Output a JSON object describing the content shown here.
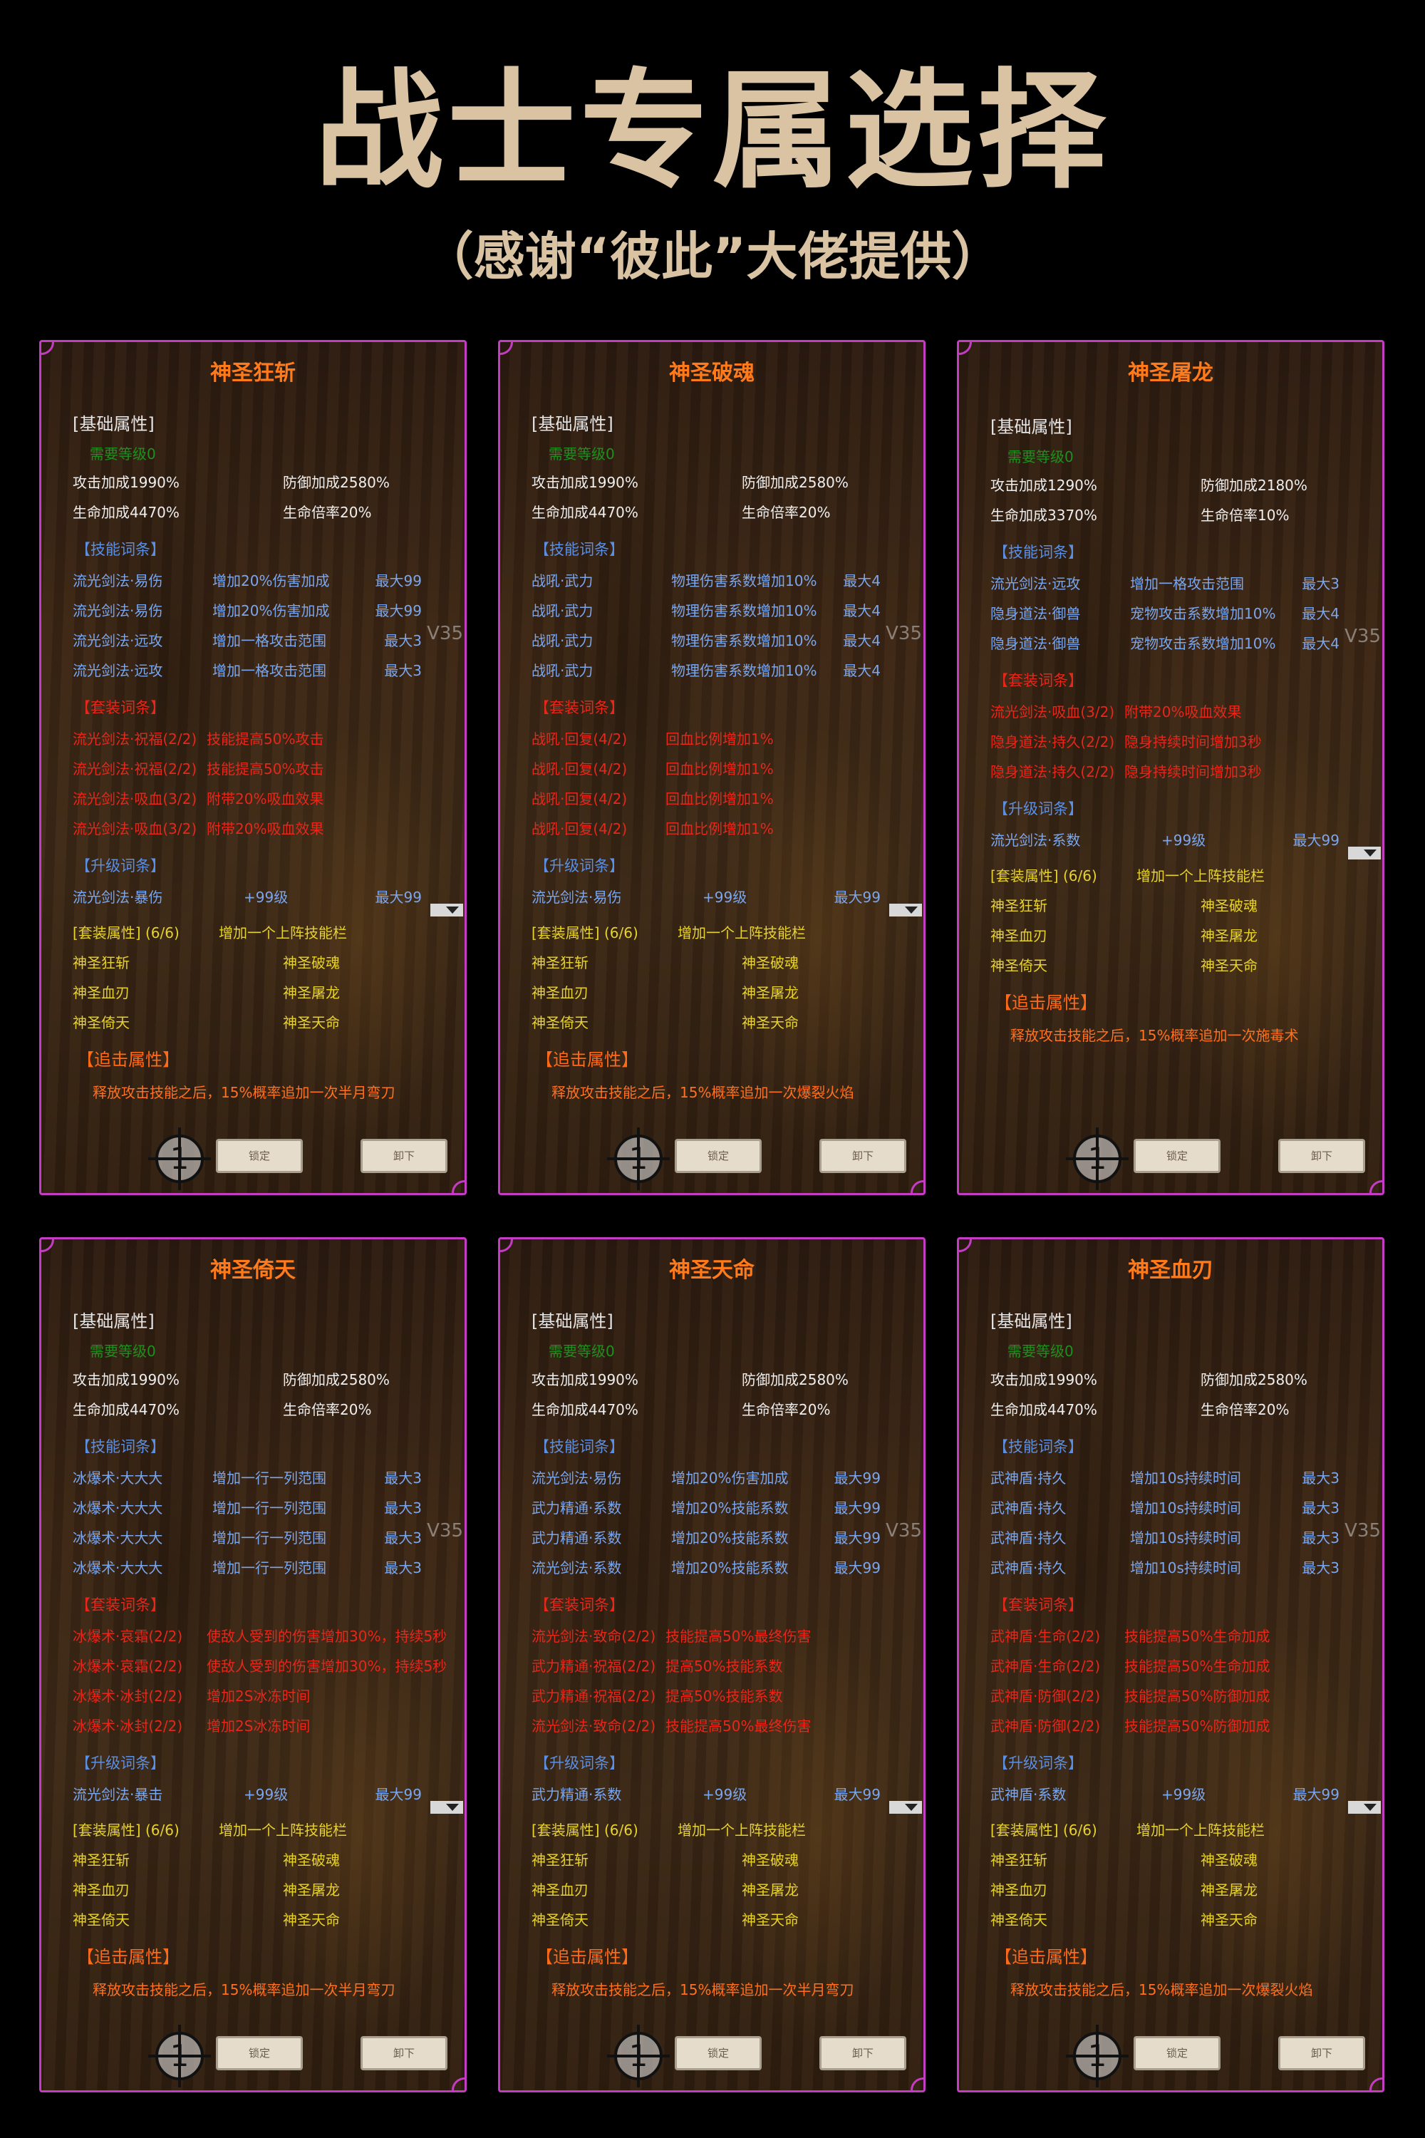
{
  "header": {
    "title": "战士专属选择",
    "subtitle": "（感谢“彼此”大佬提供）"
  },
  "colors": {
    "border": "#c43cc4",
    "title": "#ff7a1a",
    "skill": "#7aa6ee",
    "set": "#e8261a",
    "set_attr": "#e6d22a",
    "level": "#1f8f1f",
    "chase": "#ff6a18",
    "header_text": "#d9c3a3"
  },
  "common": {
    "base_label": "[基础属性]",
    "level_label": "需要等级0",
    "skill_header": "【技能词条】",
    "set_header": "【套装词条】",
    "upgrade_header": "【升级词条】",
    "set_attr_label": "[套装属性] (6/6)",
    "set_attr_effect": "增加一个上阵技能栏",
    "set_members": [
      "神圣狂斩",
      "神圣破魂",
      "神圣血刃",
      "神圣屠龙",
      "神圣倚天",
      "神圣天命"
    ],
    "chase_header": "【追击属性】",
    "lock_label": "锁定",
    "unload_label": "卸下",
    "badge": "1",
    "watermark": "V35",
    "dropdown_icon": "triangle-down"
  },
  "panels": [
    {
      "title": "神圣狂斩",
      "stats": [
        "攻击加成1990%",
        "防御加成2580%",
        "生命加成4470%",
        "生命倍率20%"
      ],
      "skills": [
        [
          "流光剑法·易伤",
          "增加20%伤害加成",
          "最大99"
        ],
        [
          "流光剑法·易伤",
          "增加20%伤害加成",
          "最大99"
        ],
        [
          "流光剑法·远攻",
          "增加一格攻击范围",
          "最大3"
        ],
        [
          "流光剑法·远攻",
          "增加一格攻击范围",
          "最大3"
        ]
      ],
      "sets": [
        [
          "流光剑法·祝福(2/2)",
          "技能提高50%攻击"
        ],
        [
          "流光剑法·祝福(2/2)",
          "技能提高50%攻击"
        ],
        [
          "流光剑法·吸血(3/2)",
          "附带20%吸血效果"
        ],
        [
          "流光剑法·吸血(3/2)",
          "附带20%吸血效果"
        ]
      ],
      "upgrade": [
        "流光剑法·暴伤",
        "+99级",
        "最大99"
      ],
      "chase": "释放攻击技能之后，15%概率追加一次半月弯刀"
    },
    {
      "title": "神圣破魂",
      "stats": [
        "攻击加成1990%",
        "防御加成2580%",
        "生命加成4470%",
        "生命倍率20%"
      ],
      "skills": [
        [
          "战吼·武力",
          "物理伤害系数增加10%",
          "最大4"
        ],
        [
          "战吼·武力",
          "物理伤害系数增加10%",
          "最大4"
        ],
        [
          "战吼·武力",
          "物理伤害系数增加10%",
          "最大4"
        ],
        [
          "战吼·武力",
          "物理伤害系数增加10%",
          "最大4"
        ]
      ],
      "sets": [
        [
          "战吼·回复(4/2)",
          "回血比例增加1%"
        ],
        [
          "战吼·回复(4/2)",
          "回血比例增加1%"
        ],
        [
          "战吼·回复(4/2)",
          "回血比例增加1%"
        ],
        [
          "战吼·回复(4/2)",
          "回血比例增加1%"
        ]
      ],
      "upgrade": [
        "流光剑法·易伤",
        "+99级",
        "最大99"
      ],
      "chase": "释放攻击技能之后，15%概率追加一次爆裂火焰"
    },
    {
      "title": "神圣屠龙",
      "stats": [
        "攻击加成1290%",
        "防御加成2180%",
        "生命加成3370%",
        "生命倍率10%"
      ],
      "skills": [
        [
          "流光剑法·远攻",
          "增加一格攻击范围",
          "最大3"
        ],
        [
          "隐身道法·御兽",
          "宠物攻击系数增加10%",
          "最大4"
        ],
        [
          "隐身道法·御兽",
          "宠物攻击系数增加10%",
          "最大4"
        ]
      ],
      "sets": [
        [
          "流光剑法·吸血(3/2)",
          "附带20%吸血效果"
        ],
        [
          "隐身道法·持久(2/2)",
          "隐身持续时间增加3秒"
        ],
        [
          "隐身道法·持久(2/2)",
          "隐身持续时间增加3秒"
        ]
      ],
      "upgrade": [
        "流光剑法·系数",
        "+99级",
        "最大99"
      ],
      "chase": "释放攻击技能之后，15%概率追加一次施毒术"
    },
    {
      "title": "神圣倚天",
      "stats": [
        "攻击加成1990%",
        "防御加成2580%",
        "生命加成4470%",
        "生命倍率20%"
      ],
      "skills": [
        [
          "冰爆术·大大大",
          "增加一行一列范围",
          "最大3"
        ],
        [
          "冰爆术·大大大",
          "增加一行一列范围",
          "最大3"
        ],
        [
          "冰爆术·大大大",
          "增加一行一列范围",
          "最大3"
        ],
        [
          "冰爆术·大大大",
          "增加一行一列范围",
          "最大3"
        ]
      ],
      "sets": [
        [
          "冰爆术·哀霜(2/2)",
          "使敌人受到的伤害增加30%，持续5秒"
        ],
        [
          "冰爆术·哀霜(2/2)",
          "使敌人受到的伤害增加30%，持续5秒"
        ],
        [
          "冰爆术·冰封(2/2)",
          "增加2S冰冻时间"
        ],
        [
          "冰爆术·冰封(2/2)",
          "增加2S冰冻时间"
        ]
      ],
      "upgrade": [
        "流光剑法·暴击",
        "+99级",
        "最大99"
      ],
      "chase": "释放攻击技能之后，15%概率追加一次半月弯刀"
    },
    {
      "title": "神圣天命",
      "stats": [
        "攻击加成1990%",
        "防御加成2580%",
        "生命加成4470%",
        "生命倍率20%"
      ],
      "skills": [
        [
          "流光剑法·易伤",
          "增加20%伤害加成",
          "最大99"
        ],
        [
          "武力精通·系数",
          "增加20%技能系数",
          "最大99"
        ],
        [
          "武力精通·系数",
          "增加20%技能系数",
          "最大99"
        ],
        [
          "流光剑法·系数",
          "增加20%技能系数",
          "最大99"
        ]
      ],
      "sets": [
        [
          "流光剑法·致命(2/2)",
          "技能提高50%最终伤害"
        ],
        [
          "武力精通·祝福(2/2)",
          "提高50%技能系数"
        ],
        [
          "武力精通·祝福(2/2)",
          "提高50%技能系数"
        ],
        [
          "流光剑法·致命(2/2)",
          "技能提高50%最终伤害"
        ]
      ],
      "upgrade": [
        "武力精通·系数",
        "+99级",
        "最大99"
      ],
      "chase": "释放攻击技能之后，15%概率追加一次半月弯刀"
    },
    {
      "title": "神圣血刃",
      "stats": [
        "攻击加成1990%",
        "防御加成2580%",
        "生命加成4470%",
        "生命倍率20%"
      ],
      "skills": [
        [
          "武神盾·持久",
          "增加10s持续时间",
          "最大3"
        ],
        [
          "武神盾·持久",
          "增加10s持续时间",
          "最大3"
        ],
        [
          "武神盾·持久",
          "增加10s持续时间",
          "最大3"
        ],
        [
          "武神盾·持久",
          "增加10s持续时间",
          "最大3"
        ]
      ],
      "sets": [
        [
          "武神盾·生命(2/2)",
          "技能提高50%生命加成"
        ],
        [
          "武神盾·生命(2/2)",
          "技能提高50%生命加成"
        ],
        [
          "武神盾·防御(2/2)",
          "技能提高50%防御加成"
        ],
        [
          "武神盾·防御(2/2)",
          "技能提高50%防御加成"
        ]
      ],
      "upgrade": [
        "武神盾·系数",
        "+99级",
        "最大99"
      ],
      "chase": "释放攻击技能之后，15%概率追加一次爆裂火焰"
    }
  ]
}
